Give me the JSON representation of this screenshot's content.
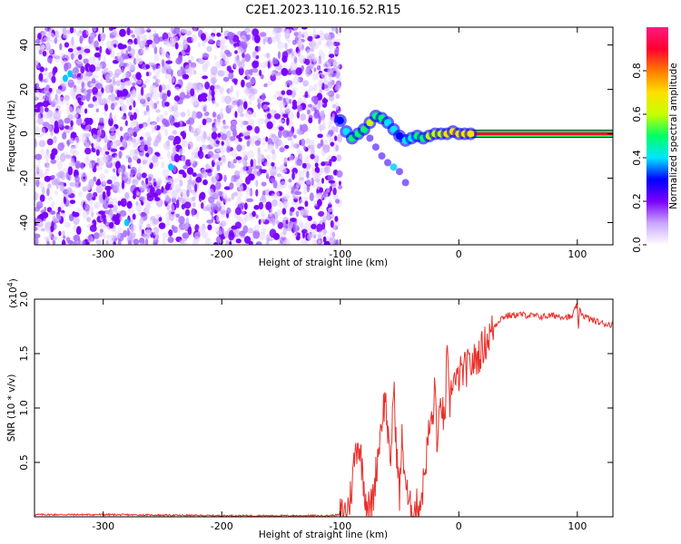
{
  "title": "C2E1.2023.110.16.52.R15",
  "chart_data": [
    {
      "type": "heatmap",
      "xlabel": "Height of straight line (km)",
      "ylabel": "Frequency (Hz)",
      "xlim": [
        -358,
        130
      ],
      "ylim": [
        -50,
        48
      ],
      "x_ticks": [
        -300,
        -200,
        -100,
        0,
        100
      ],
      "x_tick_labels": [
        "-300",
        "-200",
        "-100",
        "0",
        "100"
      ],
      "y_ticks": [
        -40,
        -20,
        0,
        20,
        40
      ],
      "y_tick_labels": [
        "-40",
        "-20",
        "0",
        "20",
        "40"
      ],
      "grid": false,
      "noise_region_x": [
        -358,
        -100
      ],
      "signal_track": {
        "x": [
          -100,
          -95,
          -90,
          -85,
          -80,
          -75,
          -70,
          -65,
          -60,
          -55,
          -50,
          -45,
          -40,
          -35,
          -30,
          -25,
          -20,
          -15,
          -10,
          -5,
          0,
          5,
          10
        ],
        "frequency": [
          6,
          1,
          -2,
          0,
          2,
          5,
          8,
          7,
          5,
          2,
          -1,
          -3,
          -2,
          -1,
          -2,
          -1,
          0,
          0,
          0,
          1,
          0,
          0,
          0
        ],
        "amplitude": [
          0.3,
          0.4,
          0.5,
          0.45,
          0.5,
          0.55,
          0.5,
          0.45,
          0.4,
          0.35,
          0.3,
          0.35,
          0.4,
          0.45,
          0.5,
          0.55,
          0.6,
          0.6,
          0.65,
          0.65,
          0.7,
          0.7,
          0.7
        ]
      },
      "secondary_branch": {
        "x": [
          -75,
          -70,
          -65,
          -60,
          -55,
          -50,
          -45
        ],
        "frequency": [
          -2,
          -6,
          -10,
          -13,
          -15,
          -17,
          -22
        ]
      },
      "carrier": {
        "x_start": 10,
        "x_end": 130,
        "frequency": 0,
        "amplitude": 0.95
      },
      "colorbar": {
        "label": "Normalized spectral amplitude",
        "range": [
          0,
          1
        ],
        "ticks": [
          0.0,
          0.2,
          0.4,
          0.6,
          0.8
        ],
        "tick_labels": [
          "0.0",
          "0.2",
          "0.4",
          "0.6",
          "0.8"
        ],
        "colors": [
          "#ffffff",
          "#c9a6ff",
          "#7a00ff",
          "#0000ff",
          "#00e5ff",
          "#00ff66",
          "#c8ff00",
          "#ffe000",
          "#ff7a00",
          "#ff0030",
          "#ff1a80"
        ]
      }
    },
    {
      "type": "line",
      "xlabel": "Height of straight line (km)",
      "ylabel": "SNR (10 * v/v)",
      "y_scale_label": "(x10^4)",
      "y_scale_base": "(x10",
      "y_scale_exp": "4",
      "y_scale_close": ")",
      "xlim": [
        -358,
        130
      ],
      "ylim": [
        0,
        2.0
      ],
      "x_ticks": [
        -300,
        -200,
        -100,
        0,
        100
      ],
      "x_tick_labels": [
        "-300",
        "-200",
        "-100",
        "0",
        "100"
      ],
      "y_ticks": [
        0.5,
        1.0,
        1.5,
        2.0
      ],
      "y_tick_labels": [
        "0.5",
        "1.0",
        "1.5",
        "2.0"
      ],
      "grid": false,
      "series": [
        {
          "color": "#e8302a",
          "x": [
            -358,
            -300,
            -200,
            -110,
            -100,
            -95,
            -92,
            -90,
            -88,
            -85,
            -82,
            -80,
            -78,
            -75,
            -72,
            -70,
            -68,
            -65,
            -62,
            -60,
            -58,
            -55,
            -52,
            -50,
            -48,
            -45,
            -42,
            -40,
            -38,
            -35,
            -32,
            -30,
            -28,
            -25,
            -22,
            -20,
            -18,
            -15,
            -12,
            -10,
            -8,
            -5,
            -2,
            0,
            5,
            10,
            15,
            20,
            25,
            30,
            35,
            40,
            45,
            50,
            60,
            70,
            80,
            90,
            95,
            100,
            101,
            102,
            105,
            110,
            115,
            120,
            125,
            130
          ],
          "values": [
            0.02,
            0.02,
            0.01,
            0.01,
            0.02,
            0.05,
            0.15,
            0.3,
            0.55,
            0.7,
            0.5,
            0.3,
            0.15,
            0.05,
            0.2,
            0.4,
            0.6,
            0.9,
            1.1,
            0.8,
            0.4,
            1.2,
            0.5,
            0.2,
            0.7,
            0.35,
            0.05,
            0.1,
            0.05,
            0.1,
            0.15,
            0.3,
            0.5,
            0.8,
            0.9,
            1.2,
            0.6,
            1.1,
            0.8,
            1.5,
            1.0,
            1.3,
            1.2,
            1.3,
            1.35,
            1.4,
            1.45,
            1.55,
            1.65,
            1.75,
            1.82,
            1.85,
            1.85,
            1.86,
            1.85,
            1.84,
            1.85,
            1.84,
            1.83,
            1.95,
            1.7,
            1.9,
            1.85,
            1.82,
            1.8,
            1.78,
            1.77,
            1.77
          ]
        }
      ]
    }
  ]
}
